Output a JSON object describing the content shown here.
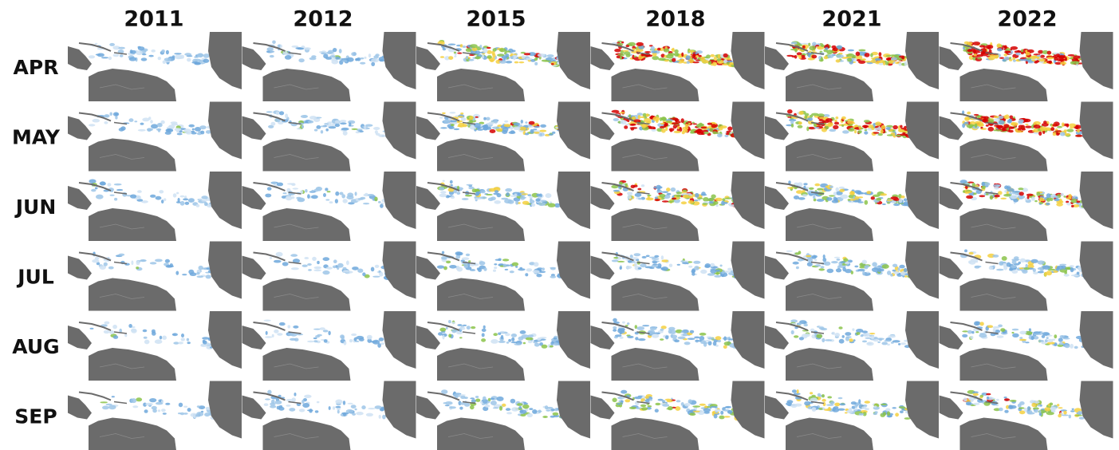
{
  "columns": [
    "2011",
    "2012",
    "2015",
    "2018",
    "2021",
    "2022"
  ],
  "rows": [
    "APR",
    "MAY",
    "JUN",
    "JUL",
    "AUG",
    "SEP"
  ]
}
